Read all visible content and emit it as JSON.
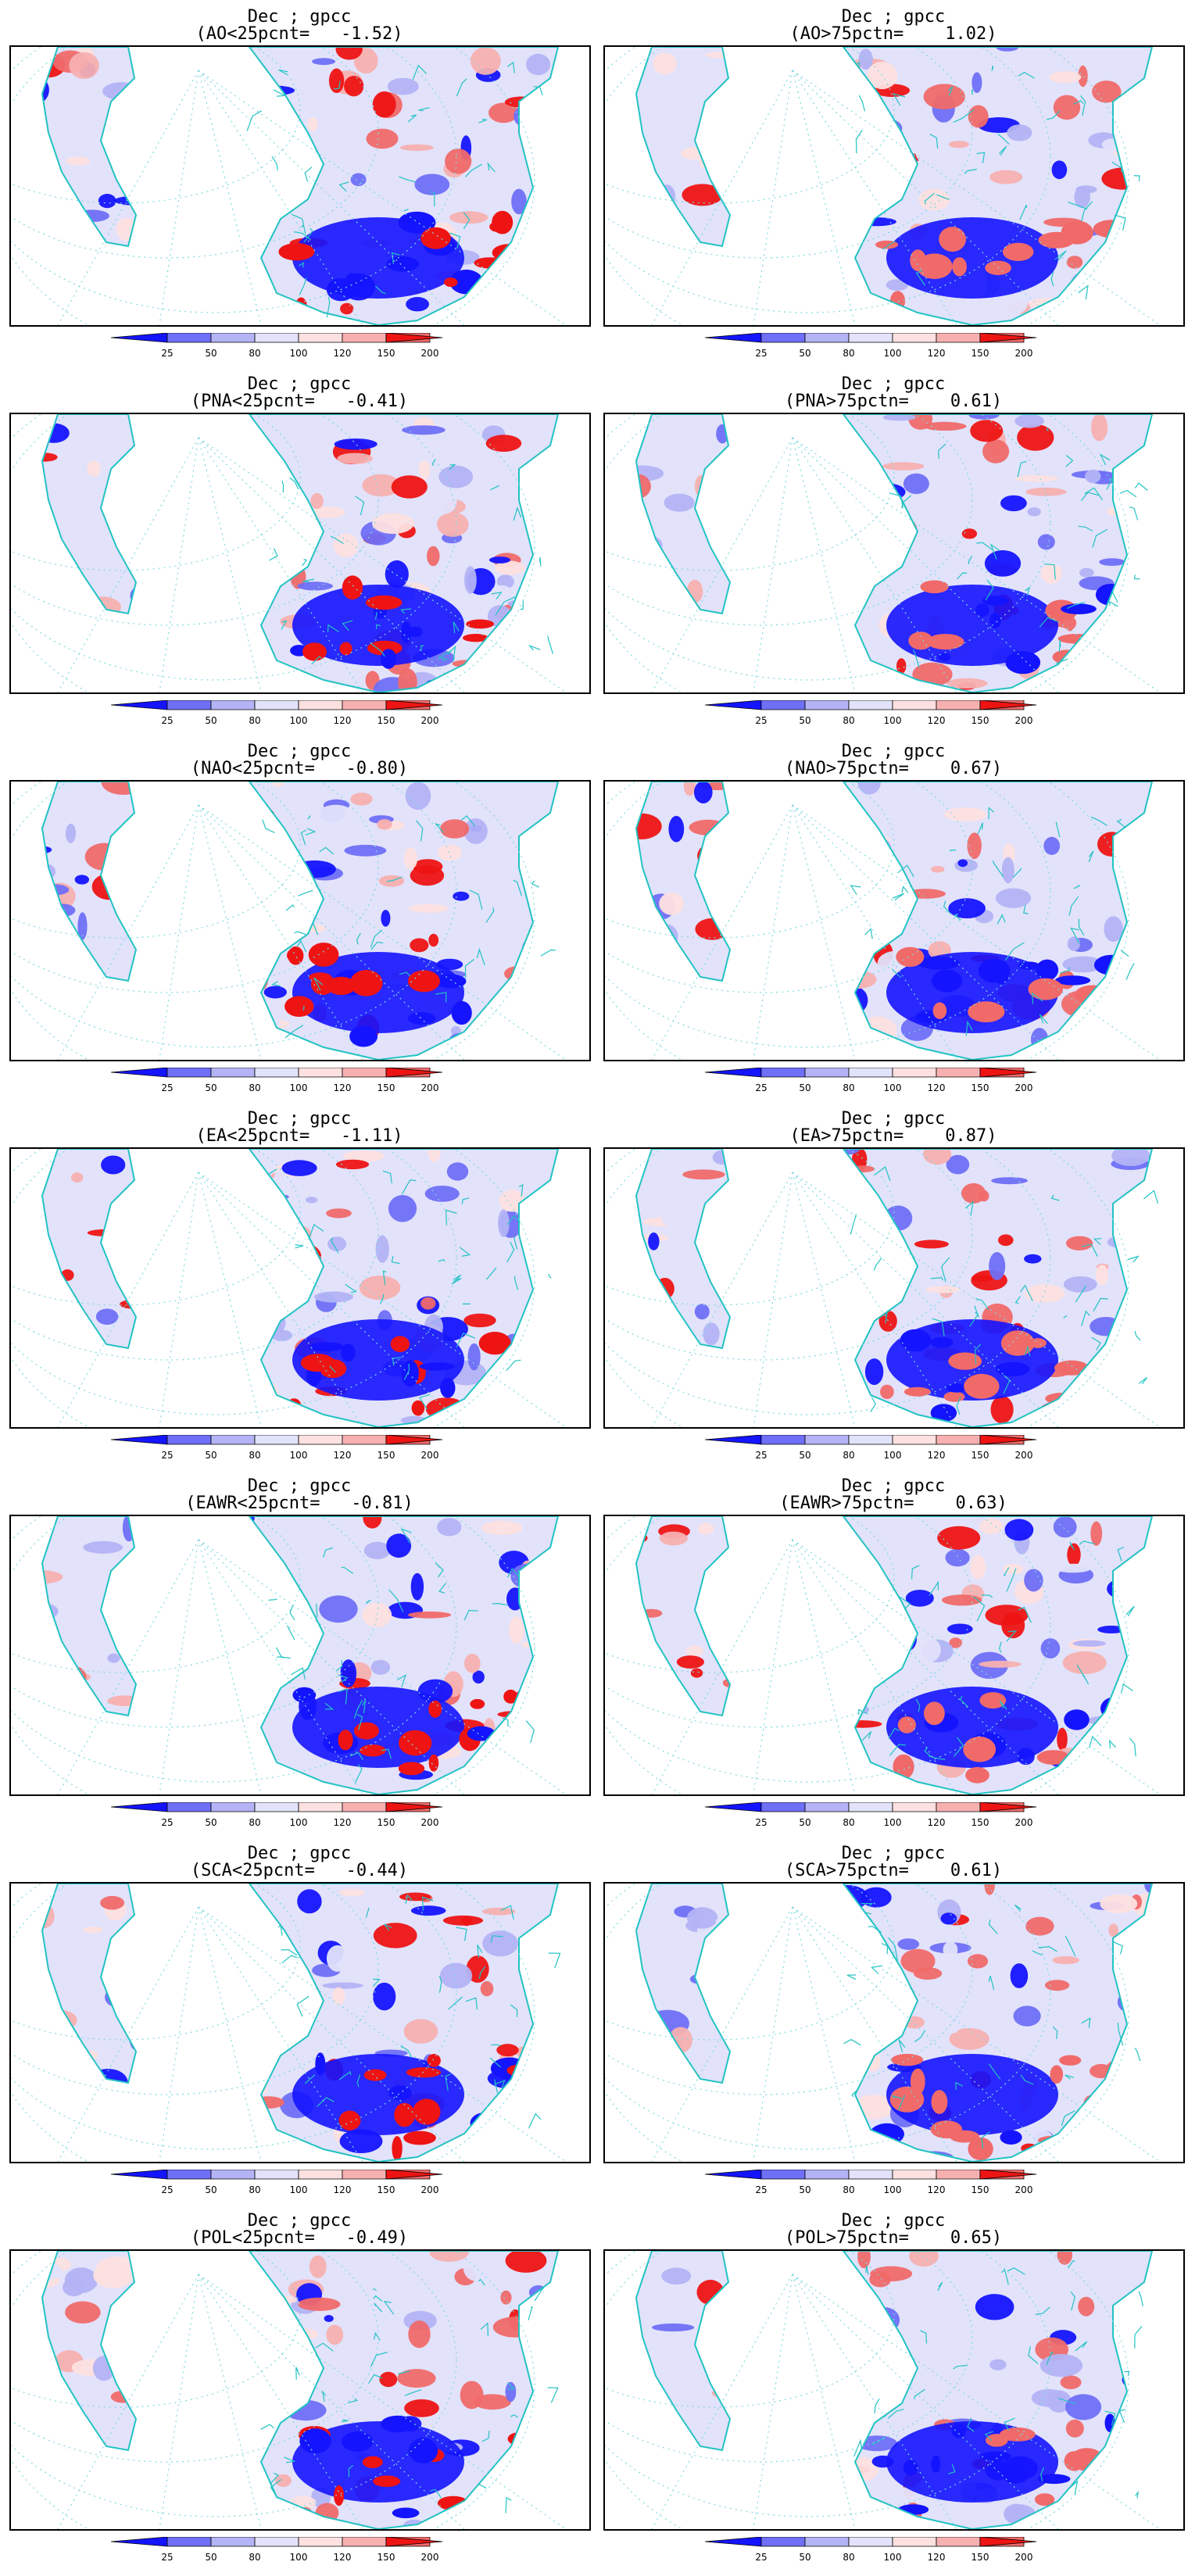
{
  "panels": [
    {
      "title": "Dec ; gpcc",
      "subtitle": "(AO<25pcnt=   -1.52)"
    },
    {
      "title": "Dec ; gpcc",
      "subtitle": "(AO>75pctn=    1.02)"
    },
    {
      "title": "Dec ; gpcc",
      "subtitle": "(PNA<25pcnt=   -0.41)"
    },
    {
      "title": "Dec ; gpcc",
      "subtitle": "(PNA>75pctn=    0.61)"
    },
    {
      "title": "Dec ; gpcc",
      "subtitle": "(NAO<25pcnt=   -0.80)"
    },
    {
      "title": "Dec ; gpcc",
      "subtitle": "(NAO>75pctn=    0.67)"
    },
    {
      "title": "Dec ; gpcc",
      "subtitle": "(EA<25pcnt=   -1.11)"
    },
    {
      "title": "Dec ; gpcc",
      "subtitle": "(EA>75pctn=    0.87)"
    },
    {
      "title": "Dec ; gpcc",
      "subtitle": "(EAWR<25pcnt=   -0.81)"
    },
    {
      "title": "Dec ; gpcc",
      "subtitle": "(EAWR>75pctn=    0.63)"
    },
    {
      "title": "Dec ; gpcc",
      "subtitle": "(SCA<25pcnt=   -0.44)"
    },
    {
      "title": "Dec ; gpcc",
      "subtitle": "(SCA>75pctn=    0.61)"
    },
    {
      "title": "Dec ; gpcc",
      "subtitle": "(POL<25pcnt=   -0.49)"
    },
    {
      "title": "Dec ; gpcc",
      "subtitle": "(POL>75pctn=    0.65)"
    }
  ],
  "colorbar": {
    "labels": [
      "25",
      "50",
      "80",
      "100",
      "120",
      "150",
      "200"
    ],
    "colors": [
      "#1414ff",
      "#6f6ff7",
      "#b3b3f5",
      "#e2e2fb",
      "#fde0e0",
      "#f7b0b0",
      "#f06a6a",
      "#ee1414"
    ]
  },
  "map_style": {
    "ocean": "#ffffff",
    "coast": "#22c3c3",
    "graticule": "#7fd8e0"
  }
}
